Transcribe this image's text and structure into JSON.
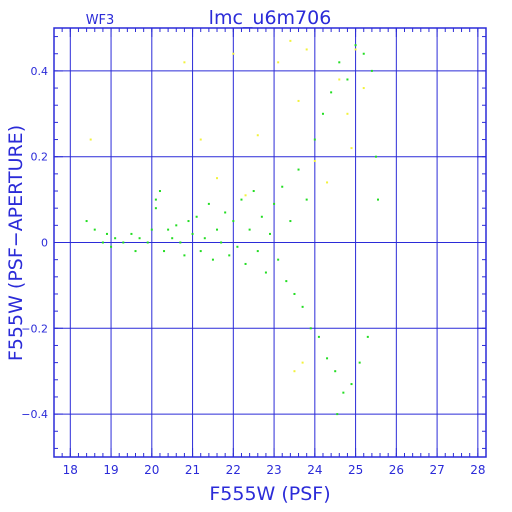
{
  "chart_data": {
    "type": "scatter",
    "title": "lmc_u6m706",
    "subtitle": "WF3",
    "xlabel": "F555W (PSF)",
    "ylabel": "F555W (PSF−APERTURE)",
    "xlim": [
      17.6,
      28.2
    ],
    "ylim": [
      -0.5,
      0.5
    ],
    "x_ticks": [
      18,
      19,
      20,
      21,
      22,
      23,
      24,
      25,
      26,
      27,
      28
    ],
    "y_ticks": [
      -0.4,
      -0.2,
      0,
      0.2,
      0.4
    ],
    "x_tick_labels": [
      "18",
      "19",
      "20",
      "21",
      "22",
      "23",
      "24",
      "25",
      "26",
      "27",
      "28"
    ],
    "y_tick_labels": [
      "−0.4",
      "−0.2",
      "0",
      "0.2",
      "0.4"
    ],
    "grid": true,
    "colors": {
      "axis": "#2b2bd8",
      "grid": "#2b2bd8",
      "text": "#2b2bd8",
      "main_points": "#22dd22",
      "outlier_points": "#f2f23a"
    },
    "series": [
      {
        "color": "#22dd22",
        "points": [
          [
            18.4,
            0.05
          ],
          [
            18.6,
            0.03
          ],
          [
            18.8,
            0.0
          ],
          [
            18.9,
            0.02
          ],
          [
            19.0,
            -0.01
          ],
          [
            19.1,
            0.01
          ],
          [
            19.3,
            0.0
          ],
          [
            19.5,
            0.02
          ],
          [
            19.6,
            -0.02
          ],
          [
            19.7,
            0.01
          ],
          [
            19.9,
            0.0
          ],
          [
            20.0,
            0.03
          ],
          [
            20.1,
            0.08
          ],
          [
            20.1,
            0.1
          ],
          [
            20.2,
            0.12
          ],
          [
            20.3,
            -0.02
          ],
          [
            20.4,
            0.03
          ],
          [
            20.5,
            0.01
          ],
          [
            20.6,
            0.04
          ],
          [
            20.7,
            0.0
          ],
          [
            20.8,
            -0.03
          ],
          [
            20.9,
            0.05
          ],
          [
            21.0,
            0.02
          ],
          [
            21.1,
            0.06
          ],
          [
            21.2,
            -0.02
          ],
          [
            21.3,
            0.01
          ],
          [
            21.4,
            0.09
          ],
          [
            21.5,
            -0.04
          ],
          [
            21.6,
            0.03
          ],
          [
            21.7,
            0.0
          ],
          [
            21.8,
            0.07
          ],
          [
            21.9,
            -0.03
          ],
          [
            22.0,
            0.05
          ],
          [
            22.1,
            -0.01
          ],
          [
            22.2,
            0.1
          ],
          [
            22.3,
            -0.05
          ],
          [
            22.4,
            0.03
          ],
          [
            22.5,
            0.12
          ],
          [
            22.6,
            -0.02
          ],
          [
            22.7,
            0.06
          ],
          [
            22.8,
            -0.07
          ],
          [
            22.9,
            0.02
          ],
          [
            23.0,
            0.09
          ],
          [
            23.1,
            -0.04
          ],
          [
            23.2,
            0.13
          ],
          [
            23.3,
            -0.09
          ],
          [
            23.4,
            0.05
          ],
          [
            23.5,
            -0.12
          ],
          [
            23.6,
            0.17
          ],
          [
            23.7,
            -0.15
          ],
          [
            23.8,
            0.1
          ],
          [
            23.9,
            -0.2
          ],
          [
            24.0,
            0.24
          ],
          [
            24.1,
            -0.22
          ],
          [
            24.2,
            0.3
          ],
          [
            24.3,
            -0.27
          ],
          [
            24.4,
            0.35
          ],
          [
            24.5,
            -0.3
          ],
          [
            24.6,
            0.42
          ],
          [
            24.7,
            -0.35
          ],
          [
            24.8,
            0.38
          ],
          [
            24.9,
            -0.33
          ],
          [
            25.0,
            0.46
          ],
          [
            25.1,
            -0.28
          ],
          [
            25.2,
            0.44
          ],
          [
            25.3,
            -0.22
          ],
          [
            25.4,
            0.4
          ],
          [
            25.5,
            0.2
          ],
          [
            25.55,
            0.1
          ],
          [
            24.55,
            -0.4
          ]
        ]
      },
      {
        "color": "#f2f23a",
        "points": [
          [
            18.5,
            0.24
          ],
          [
            20.8,
            0.42
          ],
          [
            21.2,
            0.24
          ],
          [
            21.6,
            0.15
          ],
          [
            22.0,
            0.44
          ],
          [
            22.3,
            0.11
          ],
          [
            22.6,
            0.25
          ],
          [
            23.1,
            0.42
          ],
          [
            23.4,
            0.47
          ],
          [
            23.6,
            0.33
          ],
          [
            23.8,
            0.45
          ],
          [
            23.5,
            -0.3
          ],
          [
            23.7,
            -0.28
          ],
          [
            24.0,
            0.19
          ],
          [
            24.3,
            0.14
          ],
          [
            24.6,
            0.38
          ],
          [
            24.8,
            0.3
          ],
          [
            25.0,
            0.45
          ],
          [
            25.2,
            0.36
          ],
          [
            24.9,
            0.22
          ]
        ]
      }
    ]
  }
}
